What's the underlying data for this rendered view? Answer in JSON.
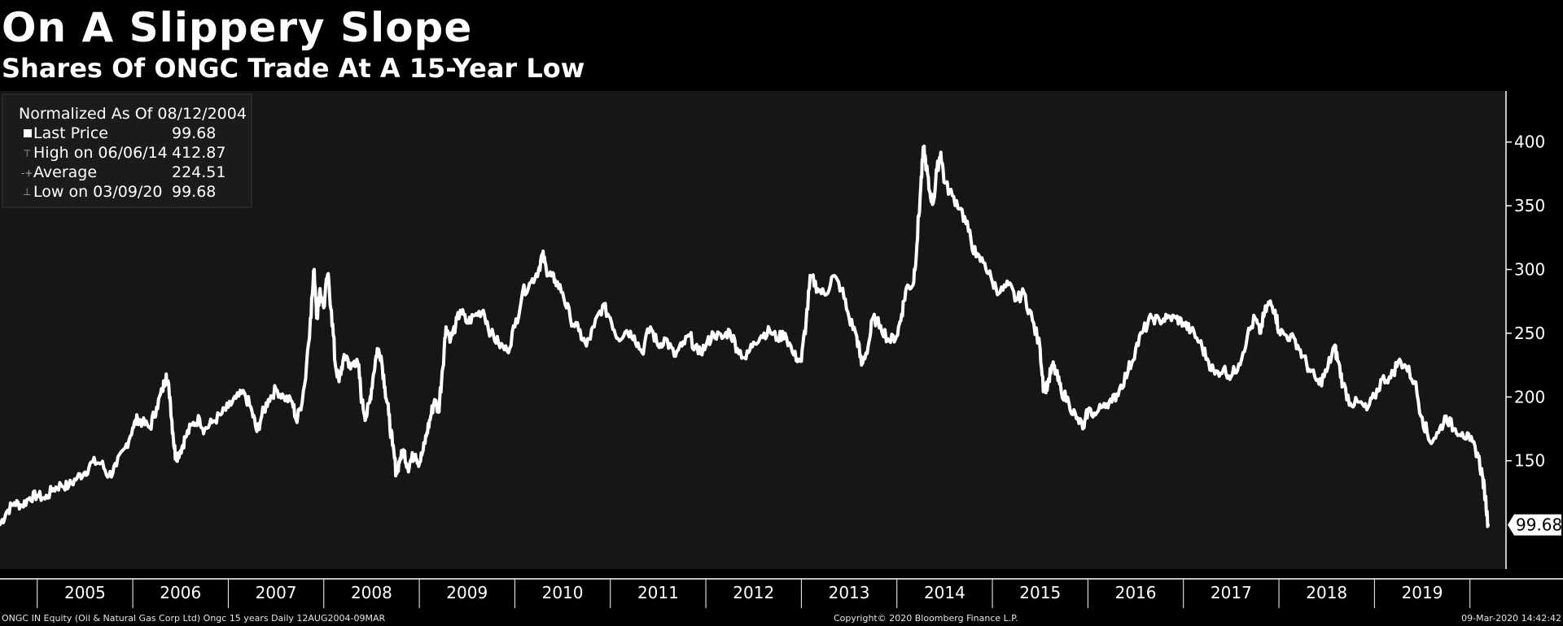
{
  "colors": {
    "background": "#000000",
    "plot_bg": "#161616",
    "line": "#ffffff",
    "grid_tick": "#ffffff"
  },
  "chart_data": {
    "type": "line",
    "title": "On A Slippery Slope",
    "subtitle": "Shares Of ONGC Trade At A 15-Year Low",
    "xlabel": "",
    "ylabel": "",
    "x_range": [
      2004.61,
      2020.19
    ],
    "ylim": [
      65,
      440
    ],
    "y_ticks": [
      150,
      200,
      250,
      300,
      350,
      400
    ],
    "x_tick_labels": [
      "2005",
      "2006",
      "2007",
      "2008",
      "2009",
      "2010",
      "2011",
      "2012",
      "2013",
      "2014",
      "2015",
      "2016",
      "2017",
      "2018",
      "2019"
    ],
    "grid": false,
    "legend": {
      "header": "Normalized As Of 08/12/2004",
      "placement": "top-left",
      "rows": [
        {
          "label": "Last Price",
          "value": "99.68"
        },
        {
          "label": "High on 06/06/14",
          "value": "412.87"
        },
        {
          "label": "Average",
          "value": "224.51"
        },
        {
          "label": "Low on 03/09/20",
          "value": "99.68"
        }
      ]
    },
    "last_value_label": "99.68",
    "series": [
      {
        "values": [
          [
            2004.61,
            100
          ],
          [
            2004.68,
            110
          ],
          [
            2004.76,
            117
          ],
          [
            2004.84,
            115
          ],
          [
            2004.92,
            121
          ],
          [
            2005.0,
            123
          ],
          [
            2005.08,
            120
          ],
          [
            2005.17,
            128
          ],
          [
            2005.25,
            131
          ],
          [
            2005.33,
            130
          ],
          [
            2005.42,
            137
          ],
          [
            2005.5,
            141
          ],
          [
            2005.58,
            149
          ],
          [
            2005.67,
            148
          ],
          [
            2005.75,
            138
          ],
          [
            2005.83,
            146
          ],
          [
            2005.92,
            160
          ],
          [
            2006.0,
            176
          ],
          [
            2006.05,
            183
          ],
          [
            2006.1,
            180
          ],
          [
            2006.18,
            176
          ],
          [
            2006.25,
            192
          ],
          [
            2006.31,
            205
          ],
          [
            2006.35,
            218
          ],
          [
            2006.39,
            200
          ],
          [
            2006.42,
            172
          ],
          [
            2006.45,
            152
          ],
          [
            2006.5,
            158
          ],
          [
            2006.55,
            168
          ],
          [
            2006.62,
            178
          ],
          [
            2006.7,
            183
          ],
          [
            2006.75,
            174
          ],
          [
            2006.83,
            180
          ],
          [
            2006.92,
            186
          ],
          [
            2007.0,
            192
          ],
          [
            2007.08,
            199
          ],
          [
            2007.17,
            203
          ],
          [
            2007.25,
            188
          ],
          [
            2007.3,
            173
          ],
          [
            2007.35,
            185
          ],
          [
            2007.42,
            198
          ],
          [
            2007.5,
            206
          ],
          [
            2007.58,
            200
          ],
          [
            2007.67,
            196
          ],
          [
            2007.72,
            180
          ],
          [
            2007.8,
            210
          ],
          [
            2007.86,
            262
          ],
          [
            2007.9,
            300
          ],
          [
            2007.93,
            262
          ],
          [
            2007.96,
            285
          ],
          [
            2008.0,
            270
          ],
          [
            2008.04,
            296
          ],
          [
            2008.08,
            268
          ],
          [
            2008.12,
            226
          ],
          [
            2008.16,
            212
          ],
          [
            2008.2,
            228
          ],
          [
            2008.24,
            232
          ],
          [
            2008.28,
            222
          ],
          [
            2008.32,
            228
          ],
          [
            2008.36,
            225
          ],
          [
            2008.4,
            196
          ],
          [
            2008.44,
            184
          ],
          [
            2008.48,
            196
          ],
          [
            2008.52,
            218
          ],
          [
            2008.56,
            238
          ],
          [
            2008.6,
            232
          ],
          [
            2008.64,
            208
          ],
          [
            2008.68,
            186
          ],
          [
            2008.72,
            162
          ],
          [
            2008.76,
            140
          ],
          [
            2008.8,
            152
          ],
          [
            2008.84,
            158
          ],
          [
            2008.88,
            144
          ],
          [
            2008.92,
            152
          ],
          [
            2008.96,
            155
          ],
          [
            2009.0,
            148
          ],
          [
            2009.04,
            158
          ],
          [
            2009.08,
            172
          ],
          [
            2009.12,
            185
          ],
          [
            2009.16,
            198
          ],
          [
            2009.2,
            188
          ],
          [
            2009.24,
            220
          ],
          [
            2009.28,
            255
          ],
          [
            2009.33,
            246
          ],
          [
            2009.38,
            256
          ],
          [
            2009.43,
            268
          ],
          [
            2009.5,
            258
          ],
          [
            2009.58,
            264
          ],
          [
            2009.67,
            268
          ],
          [
            2009.75,
            250
          ],
          [
            2009.83,
            242
          ],
          [
            2009.92,
            236
          ],
          [
            2010.0,
            255
          ],
          [
            2010.08,
            282
          ],
          [
            2010.17,
            290
          ],
          [
            2010.25,
            300
          ],
          [
            2010.29,
            312
          ],
          [
            2010.33,
            300
          ],
          [
            2010.38,
            295
          ],
          [
            2010.42,
            292
          ],
          [
            2010.5,
            282
          ],
          [
            2010.58,
            262
          ],
          [
            2010.67,
            252
          ],
          [
            2010.75,
            240
          ],
          [
            2010.83,
            255
          ],
          [
            2010.92,
            272
          ],
          [
            2011.0,
            262
          ],
          [
            2011.08,
            246
          ],
          [
            2011.17,
            252
          ],
          [
            2011.25,
            248
          ],
          [
            2011.33,
            235
          ],
          [
            2011.42,
            255
          ],
          [
            2011.5,
            240
          ],
          [
            2011.58,
            246
          ],
          [
            2011.67,
            232
          ],
          [
            2011.75,
            240
          ],
          [
            2011.83,
            248
          ],
          [
            2011.92,
            234
          ],
          [
            2012.0,
            240
          ],
          [
            2012.08,
            250
          ],
          [
            2012.17,
            246
          ],
          [
            2012.25,
            252
          ],
          [
            2012.33,
            238
          ],
          [
            2012.42,
            230
          ],
          [
            2012.5,
            243
          ],
          [
            2012.58,
            248
          ],
          [
            2012.67,
            252
          ],
          [
            2012.75,
            246
          ],
          [
            2012.83,
            250
          ],
          [
            2012.92,
            233
          ],
          [
            2013.0,
            228
          ],
          [
            2013.05,
            260
          ],
          [
            2013.1,
            295
          ],
          [
            2013.17,
            285
          ],
          [
            2013.25,
            280
          ],
          [
            2013.33,
            295
          ],
          [
            2013.42,
            285
          ],
          [
            2013.5,
            262
          ],
          [
            2013.58,
            248
          ],
          [
            2013.63,
            225
          ],
          [
            2013.7,
            240
          ],
          [
            2013.75,
            262
          ],
          [
            2013.83,
            256
          ],
          [
            2013.92,
            244
          ],
          [
            2014.0,
            248
          ],
          [
            2014.05,
            265
          ],
          [
            2014.1,
            286
          ],
          [
            2014.17,
            288
          ],
          [
            2014.21,
            320
          ],
          [
            2014.25,
            365
          ],
          [
            2014.28,
            395
          ],
          [
            2014.31,
            380
          ],
          [
            2014.34,
            362
          ],
          [
            2014.38,
            352
          ],
          [
            2014.42,
            378
          ],
          [
            2014.46,
            392
          ],
          [
            2014.5,
            368
          ],
          [
            2014.58,
            358
          ],
          [
            2014.67,
            348
          ],
          [
            2014.75,
            330
          ],
          [
            2014.83,
            310
          ],
          [
            2014.92,
            305
          ],
          [
            2015.0,
            290
          ],
          [
            2015.08,
            282
          ],
          [
            2015.17,
            288
          ],
          [
            2015.25,
            276
          ],
          [
            2015.33,
            282
          ],
          [
            2015.42,
            260
          ],
          [
            2015.5,
            238
          ],
          [
            2015.54,
            205
          ],
          [
            2015.58,
            210
          ],
          [
            2015.63,
            225
          ],
          [
            2015.67,
            218
          ],
          [
            2015.72,
            205
          ],
          [
            2015.8,
            196
          ],
          [
            2015.88,
            183
          ],
          [
            2015.96,
            176
          ],
          [
            2016.0,
            190
          ],
          [
            2016.08,
            186
          ],
          [
            2016.17,
            195
          ],
          [
            2016.25,
            196
          ],
          [
            2016.33,
            206
          ],
          [
            2016.42,
            220
          ],
          [
            2016.5,
            238
          ],
          [
            2016.58,
            252
          ],
          [
            2016.67,
            262
          ],
          [
            2016.75,
            260
          ],
          [
            2016.83,
            262
          ],
          [
            2016.92,
            262
          ],
          [
            2017.0,
            258
          ],
          [
            2017.08,
            252
          ],
          [
            2017.17,
            243
          ],
          [
            2017.25,
            230
          ],
          [
            2017.33,
            218
          ],
          [
            2017.42,
            222
          ],
          [
            2017.5,
            216
          ],
          [
            2017.58,
            226
          ],
          [
            2017.67,
            248
          ],
          [
            2017.75,
            262
          ],
          [
            2017.8,
            250
          ],
          [
            2017.85,
            266
          ],
          [
            2017.9,
            274
          ],
          [
            2017.96,
            268
          ],
          [
            2018.0,
            252
          ],
          [
            2018.08,
            248
          ],
          [
            2018.17,
            245
          ],
          [
            2018.25,
            232
          ],
          [
            2018.33,
            220
          ],
          [
            2018.42,
            210
          ],
          [
            2018.5,
            220
          ],
          [
            2018.58,
            240
          ],
          [
            2018.62,
            228
          ],
          [
            2018.67,
            210
          ],
          [
            2018.75,
            195
          ],
          [
            2018.83,
            196
          ],
          [
            2018.92,
            190
          ],
          [
            2019.0,
            200
          ],
          [
            2019.08,
            214
          ],
          [
            2019.17,
            215
          ],
          [
            2019.25,
            228
          ],
          [
            2019.33,
            224
          ],
          [
            2019.42,
            212
          ],
          [
            2019.5,
            184
          ],
          [
            2019.58,
            165
          ],
          [
            2019.67,
            172
          ],
          [
            2019.75,
            185
          ],
          [
            2019.83,
            175
          ],
          [
            2019.92,
            172
          ],
          [
            2020.0,
            166
          ],
          [
            2020.08,
            156
          ],
          [
            2020.13,
            138
          ],
          [
            2020.16,
            122
          ],
          [
            2020.19,
            99.68
          ]
        ]
      }
    ]
  },
  "footer": {
    "left": "ONGC IN Equity (Oil & Natural Gas Corp Ltd) Ongc 15 years  Daily 12AUG2004-09MAR",
    "center": "Copyright© 2020 Bloomberg Finance L.P.",
    "right": "09-Mar-2020 14:42:42"
  }
}
